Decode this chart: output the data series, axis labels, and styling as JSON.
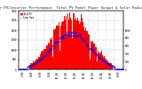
{
  "title": "Solar PV/Inverter Performance  Total PV Panel Power Output & Solar Radiation",
  "title_fontsize": 2.8,
  "background_color": "#ffffff",
  "plot_bg_color": "#ffffff",
  "grid_color": "#bbbbbb",
  "bar_color": "#ff0000",
  "line_color": "#0000ff",
  "y_max_bar": 3000,
  "y_max_line": 1000,
  "num_points": 144,
  "x_tick_labels": [
    "2:00",
    "4:00",
    "6:00",
    "8:00",
    "10:00",
    "12:00",
    "14:00",
    "16:00",
    "18:00",
    "20:00",
    "22:00",
    "0:00"
  ],
  "legend_pv": "Total PV",
  "legend_solar": "Solar Rad.",
  "line_width": 0.4,
  "marker_size": 0.6,
  "tick_fontsize": 2.0,
  "legend_fontsize": 1.8
}
